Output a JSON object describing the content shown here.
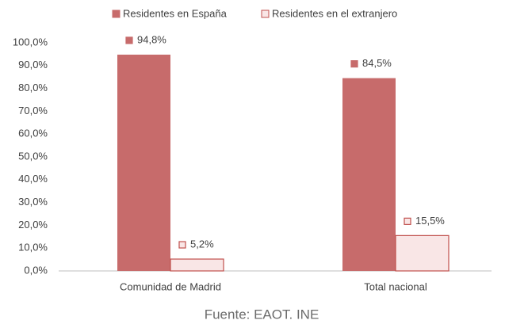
{
  "chart_data": {
    "type": "bar",
    "categories": [
      "Comunidad de Madrid",
      "Total nacional"
    ],
    "series": [
      {
        "name": "Residentes en España",
        "color": "#c76b6b",
        "values": [
          94.8,
          84.5
        ],
        "value_labels": [
          "94,8%",
          "84,5%"
        ]
      },
      {
        "name": "Residentes en el extranjero",
        "color": "#f9e6e6",
        "edge": "#c0504d",
        "values": [
          5.2,
          15.5
        ],
        "value_labels": [
          "5,2%",
          "15,5%"
        ]
      }
    ],
    "ylim": [
      0,
      100
    ],
    "yticks": [
      {
        "value": 0,
        "label": "0,0%"
      },
      {
        "value": 10,
        "label": "10,0%"
      },
      {
        "value": 20,
        "label": "20,0%"
      },
      {
        "value": 30,
        "label": "30,0%"
      },
      {
        "value": 40,
        "label": "40,0%"
      },
      {
        "value": 50,
        "label": "50,0%"
      },
      {
        "value": 60,
        "label": "60,0%"
      },
      {
        "value": 70,
        "label": "70,0%"
      },
      {
        "value": 80,
        "label": "80,0%"
      },
      {
        "value": 90,
        "label": "90,0%"
      },
      {
        "value": 100,
        "label": "100,0%"
      }
    ],
    "grid": false,
    "legend": "top",
    "source": "Fuente: EAOT. INE"
  }
}
